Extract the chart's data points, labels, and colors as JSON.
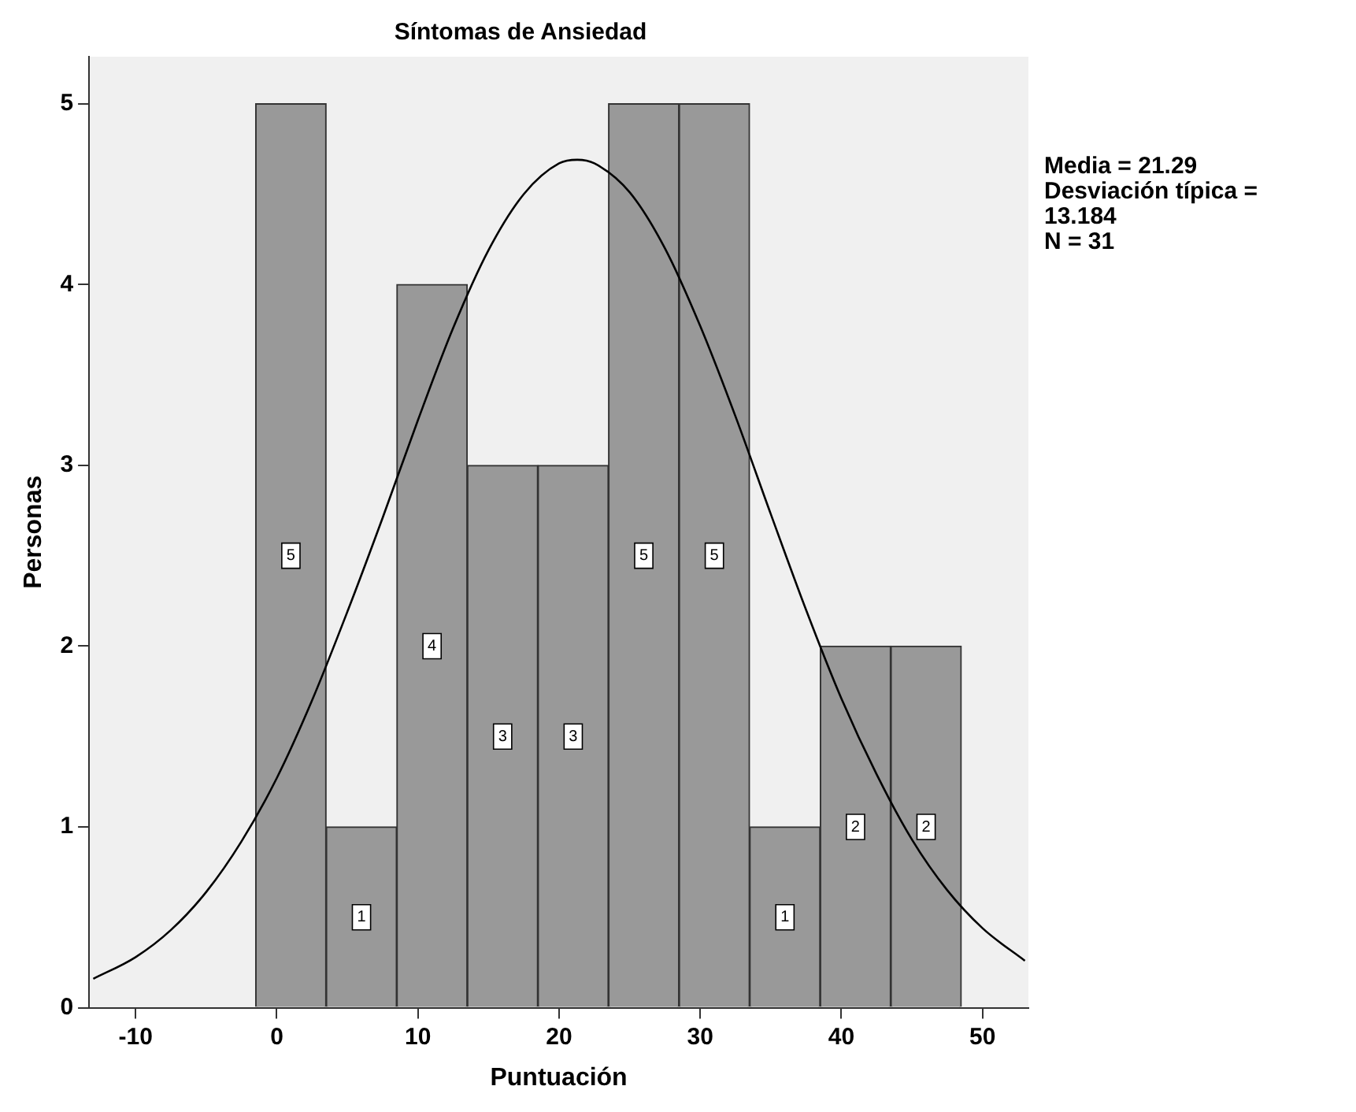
{
  "chart_data": {
    "type": "histogram",
    "title": "Síntomas de Ansiedad",
    "xlabel": "Puntuación",
    "ylabel": "Personas",
    "bins": [
      -1.5,
      3.5,
      8.5,
      13.5,
      18.5,
      23.5,
      28.5,
      33.5,
      38.5,
      43.5,
      48.5
    ],
    "values": [
      5,
      1,
      4,
      3,
      3,
      5,
      5,
      1,
      2,
      2
    ],
    "color": "#999999",
    "value_labels": [
      "5",
      "1",
      "4",
      "3",
      "3",
      "5",
      "5",
      "1",
      "2",
      "2"
    ],
    "series": [
      {
        "type": "line",
        "color": "#000000",
        "marker": "none",
        "x": [
          -13,
          -10,
          -7.5,
          -5,
          -2.5,
          0,
          2.5,
          5,
          7.5,
          10,
          12.5,
          15,
          17.5,
          20,
          21.29,
          22.5,
          25,
          27.5,
          30,
          32.5,
          35,
          37.5,
          40,
          42.5,
          45,
          47.5,
          50,
          53
        ],
        "values": [
          0.16,
          0.28,
          0.43,
          0.64,
          0.92,
          1.27,
          1.7,
          2.19,
          2.71,
          3.25,
          3.76,
          4.19,
          4.5,
          4.67,
          4.69,
          4.67,
          4.51,
          4.2,
          3.77,
          3.27,
          2.73,
          2.2,
          1.71,
          1.29,
          0.93,
          0.65,
          0.44,
          0.26
        ]
      }
    ],
    "xlim": [
      -13.3,
      53.25
    ],
    "xticks": [
      -10,
      0,
      10,
      20,
      30,
      40,
      50
    ],
    "ylim": [
      0,
      5.26
    ],
    "yticks": [
      0,
      1,
      2,
      3,
      4,
      5
    ],
    "grid": false,
    "legend": false,
    "annotations": [
      "Media = 21.29",
      "Desviación típica = 13.184",
      "N = 31"
    ]
  }
}
